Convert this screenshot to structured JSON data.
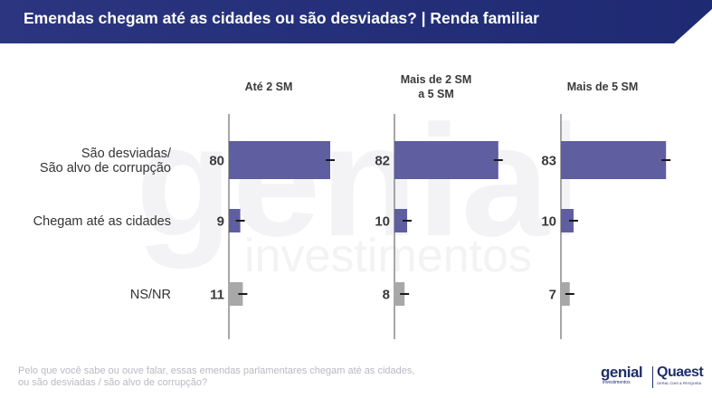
{
  "header": {
    "title": "Emendas chegam até as cidades ou são desviadas? | Renda familiar",
    "bg_color": "#2b3580"
  },
  "watermark": {
    "brand": "genial",
    "sub": "investimentos"
  },
  "chart_data": {
    "type": "bar",
    "orientation": "horizontal",
    "categories": [
      [
        "São desviadas/",
        "São alvo de corrupção"
      ],
      [
        "Chegam até as cidades"
      ],
      [
        "NS/NR"
      ]
    ],
    "panels": [
      {
        "title": [
          "Até 2 SM"
        ],
        "values": [
          80,
          9,
          11
        ]
      },
      {
        "title": [
          "Mais de 2 SM",
          "a 5 SM"
        ],
        "values": [
          82,
          10,
          8
        ]
      },
      {
        "title": [
          "Mais de 5 SM"
        ],
        "values": [
          83,
          10,
          7
        ]
      }
    ],
    "xlim": [
      0,
      100
    ],
    "error_bars": true,
    "grid": false,
    "colors": {
      "main": "#5f5ea1",
      "nsnr": "#a8a8a8",
      "axis": "#8a8a8a",
      "text": "#3a3a3a",
      "label": "#333333"
    },
    "category_colors": [
      "main",
      "main",
      "nsnr"
    ]
  },
  "footnote": {
    "lines": [
      "Pelo que você sabe ou ouve falar, essas emendas parlamentares chegam até as cidades,",
      "ou são desviadas / são alvo de corrupção?"
    ]
  },
  "logos": {
    "genial": "genial",
    "genial_sub": "investimentos",
    "quaest": "Quaest",
    "quaest_sub": "GERAL CIAS & PESQUISA"
  }
}
